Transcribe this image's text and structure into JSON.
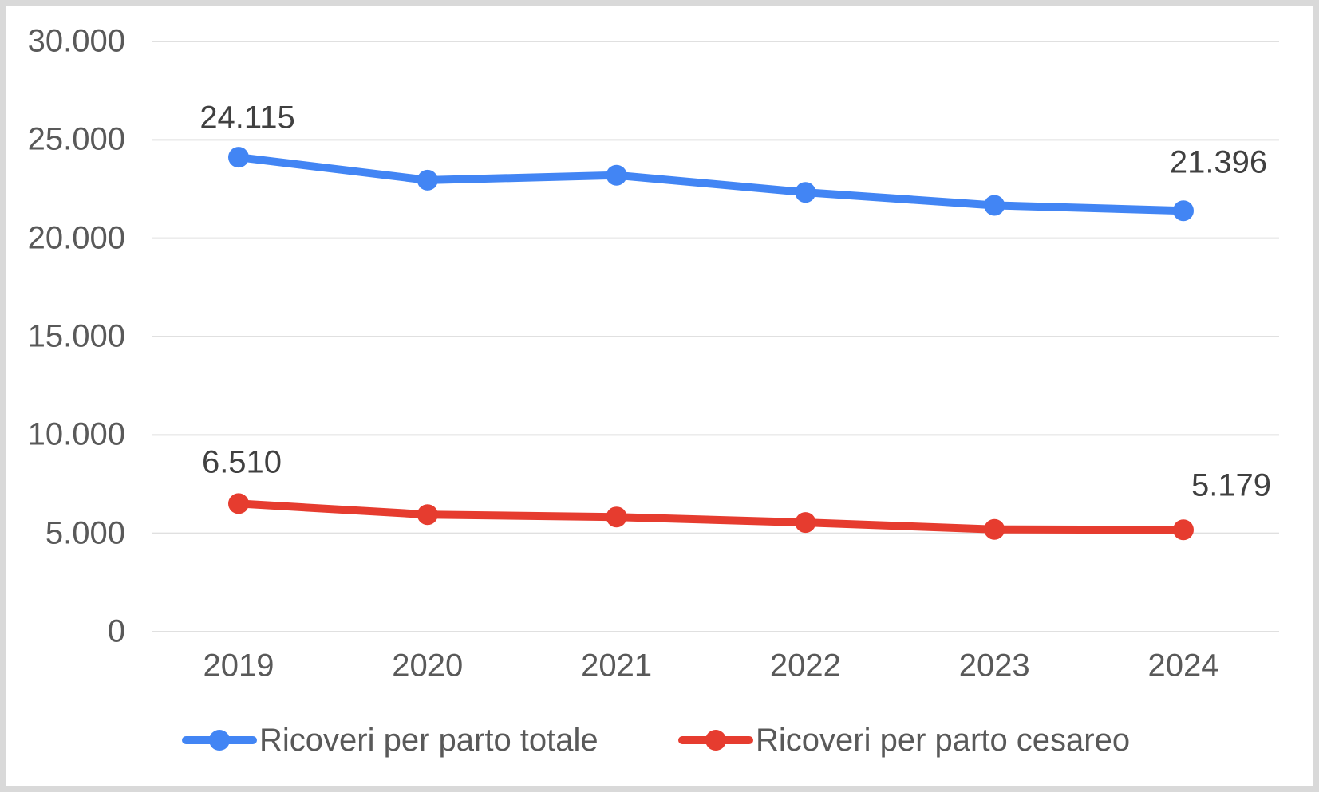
{
  "chart_data": {
    "type": "line",
    "categories": [
      "2019",
      "2020",
      "2021",
      "2022",
      "2023",
      "2024"
    ],
    "series": [
      {
        "name": "Ricoveri per parto totale",
        "color": "#4285F4",
        "values": [
          24115,
          22950,
          23200,
          22330,
          21670,
          21396
        ],
        "point_labels": [
          {
            "index": 0,
            "text": "24.115",
            "dx": 11,
            "dy": -49
          },
          {
            "index": 5,
            "text": "21.396",
            "dx": 44,
            "dy": -60
          }
        ]
      },
      {
        "name": "Ricoveri per parto cesareo",
        "color": "#E63C2F",
        "values": [
          6510,
          5950,
          5830,
          5550,
          5200,
          5179
        ],
        "point_labels": [
          {
            "index": 0,
            "text": "6.510",
            "dx": 4,
            "dy": -51
          },
          {
            "index": 5,
            "text": "5.179",
            "dx": 60,
            "dy": -55
          }
        ]
      }
    ],
    "title": "",
    "xlabel": "",
    "ylabel": "",
    "ylim": [
      0,
      30000
    ],
    "y_ticks": [
      {
        "value": 0,
        "label": "0"
      },
      {
        "value": 5000,
        "label": "5.000"
      },
      {
        "value": 10000,
        "label": "10.000"
      },
      {
        "value": 15000,
        "label": "15.000"
      },
      {
        "value": 20000,
        "label": "20.000"
      },
      {
        "value": 25000,
        "label": "25.000"
      },
      {
        "value": 30000,
        "label": "30.000"
      }
    ],
    "grid": "horizontal",
    "legend_position": "bottom"
  },
  "colors": {
    "gridline": "#E0E0E0",
    "axis_text": "#595959",
    "data_label_text": "#404040",
    "background": "#FFFFFF",
    "outer_border": "#D9D9D9"
  }
}
